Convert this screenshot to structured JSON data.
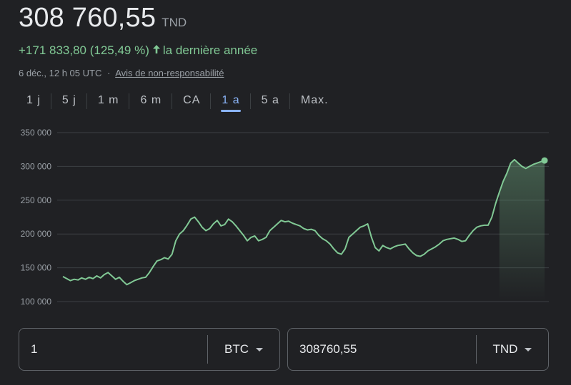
{
  "header": {
    "price": "308 760,55",
    "currency": "TND",
    "change": "+171 833,80 (125,49 %)",
    "change_period": "la dernière année",
    "timestamp": "6 déc., 12 h 05 UTC",
    "separator": "·",
    "disclaimer": "Avis de non-responsabilité"
  },
  "tabs": [
    {
      "label": "1 j"
    },
    {
      "label": "5 j"
    },
    {
      "label": "1 m"
    },
    {
      "label": "6 m"
    },
    {
      "label": "CA"
    },
    {
      "label": "1 a",
      "active": true
    },
    {
      "label": "5 a"
    },
    {
      "label": "Max."
    }
  ],
  "colors": {
    "line": "#81c995",
    "grid": "#3c4043",
    "accent": "#8ab4f8",
    "background": "#202124"
  },
  "chart_data": {
    "type": "line",
    "ytick_labels": [
      "350 000",
      "300 000",
      "250 000",
      "200 000",
      "150 000",
      "100 000"
    ],
    "yticks": [
      350000,
      300000,
      250000,
      200000,
      150000,
      100000
    ],
    "ylim": [
      100000,
      350000
    ],
    "grid": true,
    "series": [
      {
        "values": [
          137000,
          134000,
          131000,
          133000,
          132000,
          135000,
          133000,
          136000,
          134000,
          138000,
          135000,
          140000,
          143000,
          138000,
          133000,
          136000,
          130000,
          125000,
          128000,
          131000,
          133000,
          135000,
          136000,
          143000,
          152000,
          160000,
          162000,
          165000,
          163000,
          170000,
          190000,
          200000,
          205000,
          213000,
          222000,
          225000,
          218000,
          210000,
          205000,
          208000,
          215000,
          220000,
          212000,
          214000,
          222000,
          218000,
          212000,
          205000,
          198000,
          190000,
          195000,
          197000,
          190000,
          192000,
          195000,
          205000,
          210000,
          215000,
          220000,
          218000,
          219000,
          216000,
          214000,
          212000,
          208000,
          206000,
          207000,
          205000,
          198000,
          193000,
          190000,
          185000,
          178000,
          172000,
          170000,
          178000,
          195000,
          200000,
          205000,
          210000,
          212000,
          215000,
          195000,
          180000,
          175000,
          183000,
          180000,
          178000,
          181000,
          183000,
          184000,
          185000,
          178000,
          172000,
          168000,
          167000,
          170000,
          175000,
          178000,
          181000,
          185000,
          190000,
          192000,
          193000,
          194000,
          192000,
          189000,
          190000,
          198000,
          205000,
          210000,
          212000,
          213000,
          213000,
          225000,
          245000,
          262000,
          278000,
          290000,
          305000,
          310000,
          305000,
          300000,
          297000,
          300000,
          303000,
          305000,
          307000,
          308760
        ]
      }
    ]
  },
  "converter": {
    "left": {
      "value": "1",
      "unit": "BTC"
    },
    "right": {
      "value": "308760,55",
      "unit": "TND"
    }
  }
}
